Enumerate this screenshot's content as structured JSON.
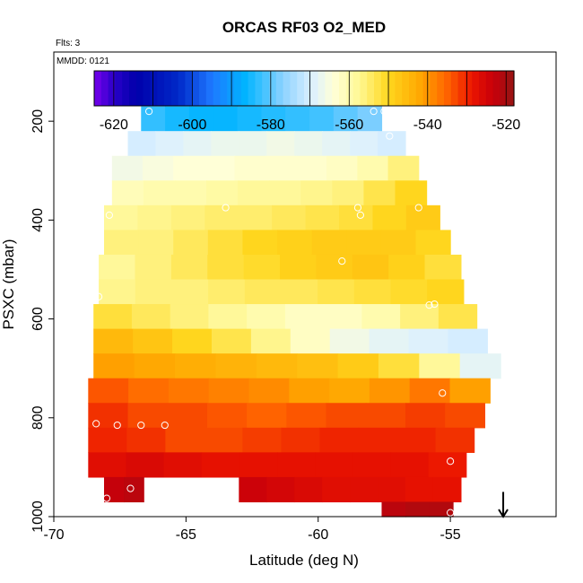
{
  "chart_data": {
    "type": "heatmap",
    "title": "ORCAS RF03 O2_MED",
    "flights_label": "Flts: 3",
    "date_label": "MMDD: 0121",
    "xlabel": "Latitude (deg N)",
    "ylabel": "PSXC (mbar)",
    "xlim": [
      -70,
      -51
    ],
    "ylim": [
      1000,
      60
    ],
    "x_ticks": [
      -70,
      -65,
      -60,
      -55
    ],
    "x_tick_labels": [
      "-70",
      "-65",
      "-60",
      "-55"
    ],
    "y_ticks": [
      200,
      400,
      600,
      800,
      1000
    ],
    "y_tick_labels": [
      "200",
      "400",
      "600",
      "800",
      "1000"
    ],
    "colorbar": {
      "range": [
        -625,
        -518
      ],
      "ticks": [
        -620,
        -600,
        -580,
        -560,
        -540,
        -520
      ],
      "tick_labels": [
        "-620",
        "-600",
        "-580",
        "-560",
        "-540",
        "-520"
      ]
    },
    "rows": [
      {
        "p": [
          170,
          220
        ],
        "lat": [
          -66.7,
          -57.6
        ],
        "v": [
          -583,
          -585,
          -586,
          -586,
          -585,
          -584,
          -583,
          -582,
          -580,
          -578
        ]
      },
      {
        "p": [
          220,
          270
        ],
        "lat": [
          -67.2,
          -56.7
        ],
        "v": [
          -570,
          -569,
          -568,
          -567,
          -567,
          -566,
          -567,
          -568,
          -569,
          -570
        ]
      },
      {
        "p": [
          270,
          320
        ],
        "lat": [
          -67.8,
          -56.2
        ],
        "v": [
          -566,
          -565,
          -564,
          -564,
          -563,
          -563,
          -563,
          -562,
          -560,
          -556
        ]
      },
      {
        "p": [
          320,
          370
        ],
        "lat": [
          -67.8,
          -55.9
        ],
        "v": [
          -561,
          -560,
          -560,
          -559,
          -558,
          -558,
          -557,
          -556,
          -553,
          -550
        ]
      },
      {
        "p": [
          370,
          420
        ],
        "lat": [
          -68.1,
          -55.4
        ],
        "v": [
          -558,
          -557,
          -556,
          -555,
          -555,
          -554,
          -553,
          -552,
          -550,
          -548
        ]
      },
      {
        "p": [
          420,
          470
        ],
        "lat": [
          -68.1,
          -55.0
        ],
        "v": [
          -556,
          -556,
          -554,
          -552,
          -550,
          -549,
          -548,
          -548,
          -548,
          -550
        ]
      },
      {
        "p": [
          470,
          520
        ],
        "lat": [
          -68.3,
          -54.6
        ],
        "v": [
          -558,
          -556,
          -554,
          -552,
          -551,
          -549,
          -548,
          -547,
          -549,
          -552
        ]
      },
      {
        "p": [
          520,
          570
        ],
        "lat": [
          -68.3,
          -54.5
        ],
        "v": [
          -557,
          -556,
          -556,
          -555,
          -554,
          -554,
          -553,
          -552,
          -551,
          -550
        ]
      },
      {
        "p": [
          570,
          620
        ],
        "lat": [
          -68.5,
          -54.0
        ],
        "v": [
          -552,
          -554,
          -556,
          -558,
          -560,
          -562,
          -562,
          -560,
          -556,
          -553
        ]
      },
      {
        "p": [
          620,
          670
        ],
        "lat": [
          -68.5,
          -53.6
        ],
        "v": [
          -545,
          -547,
          -550,
          -553,
          -557,
          -562,
          -566,
          -568,
          -569,
          -570
        ]
      },
      {
        "p": [
          670,
          720
        ],
        "lat": [
          -68.5,
          -53.1
        ],
        "v": [
          -541,
          -542,
          -543,
          -544,
          -545,
          -546,
          -548,
          -552,
          -558,
          -568
        ]
      },
      {
        "p": [
          720,
          770
        ],
        "lat": [
          -68.7,
          -53.5
        ],
        "v": [
          -534,
          -536,
          -537,
          -538,
          -539,
          -541,
          -542,
          -540,
          -537,
          -541
        ]
      },
      {
        "p": [
          770,
          820
        ],
        "lat": [
          -68.7,
          -53.7
        ],
        "v": [
          -531,
          -533,
          -533,
          -534,
          -535,
          -534,
          -533,
          -533,
          -532,
          -533
        ]
      },
      {
        "p": [
          820,
          870
        ],
        "lat": [
          -68.7,
          -54.1
        ],
        "v": [
          -530,
          -531,
          -533,
          -533,
          -532,
          -531,
          -530,
          -530,
          -530,
          -531
        ]
      },
      {
        "p": [
          870,
          920
        ],
        "lat": [
          -68.7,
          -54.4
        ],
        "v": [
          -527,
          -526,
          -527,
          -528,
          -528,
          -528,
          -528,
          -528,
          -528,
          -529
        ]
      },
      {
        "p": [
          920,
          970
        ],
        "lat": [
          -68.1,
          -66.6
        ],
        "v": [
          -523,
          -522
        ]
      },
      {
        "p": [
          920,
          970
        ],
        "lat": [
          -63.0,
          -54.6
        ],
        "v": [
          -524,
          -525,
          -526,
          -527,
          -527,
          -527,
          -528,
          -528
        ]
      },
      {
        "p": [
          970,
          1000
        ],
        "lat": [
          -57.6,
          -54.9
        ],
        "v": [
          -522,
          -521,
          -521
        ]
      }
    ],
    "markers": [
      {
        "lat": -66.4,
        "p": 180
      },
      {
        "lat": -57.9,
        "p": 180
      },
      {
        "lat": -57.5,
        "p": 180
      },
      {
        "lat": -57.3,
        "p": 230
      },
      {
        "lat": -67.9,
        "p": 390
      },
      {
        "lat": -63.5,
        "p": 375
      },
      {
        "lat": -58.5,
        "p": 375
      },
      {
        "lat": -58.4,
        "p": 390
      },
      {
        "lat": -56.2,
        "p": 375
      },
      {
        "lat": -59.1,
        "p": 483
      },
      {
        "lat": -68.3,
        "p": 555
      },
      {
        "lat": -55.8,
        "p": 572
      },
      {
        "lat": -55.6,
        "p": 570
      },
      {
        "lat": -55.3,
        "p": 750
      },
      {
        "lat": -68.4,
        "p": 812
      },
      {
        "lat": -67.6,
        "p": 815
      },
      {
        "lat": -66.7,
        "p": 815
      },
      {
        "lat": -65.8,
        "p": 815
      },
      {
        "lat": -55.0,
        "p": 888
      },
      {
        "lat": -67.1,
        "p": 943
      },
      {
        "lat": -55.0,
        "p": 992
      },
      {
        "lat": -68.0,
        "p": 963
      }
    ],
    "arrow": {
      "lat": -53.0,
      "p_from": 950,
      "p_to": 1000
    }
  }
}
